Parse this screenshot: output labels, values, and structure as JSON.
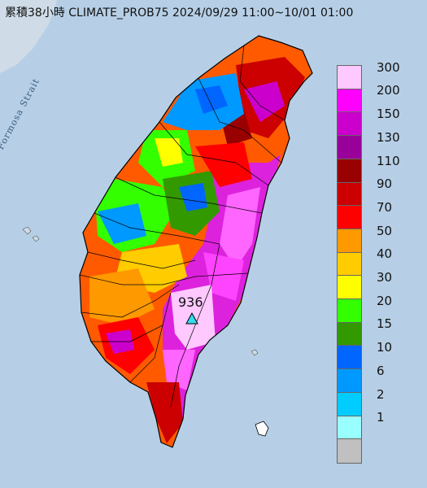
{
  "title": "累積38小時 CLIMATE_PROB75 2024/09/29 11:00~10/01 01:00",
  "strait_label": "Formosa Strait",
  "max_value_label": "936",
  "legend": {
    "labels": [
      "300",
      "200",
      "150",
      "130",
      "110",
      "90",
      "70",
      "50",
      "40",
      "30",
      "20",
      "15",
      "10",
      "6",
      "2",
      "1"
    ],
    "colors": [
      "#ffc8ff",
      "#ff00ff",
      "#cc00cc",
      "#990099",
      "#990000",
      "#cc0000",
      "#ff0000",
      "#ff9900",
      "#ffcc00",
      "#ffff00",
      "#33ff00",
      "#339900",
      "#0066ff",
      "#0099ff",
      "#00ccff",
      "#99ffff",
      "#c0c0c0"
    ]
  }
}
